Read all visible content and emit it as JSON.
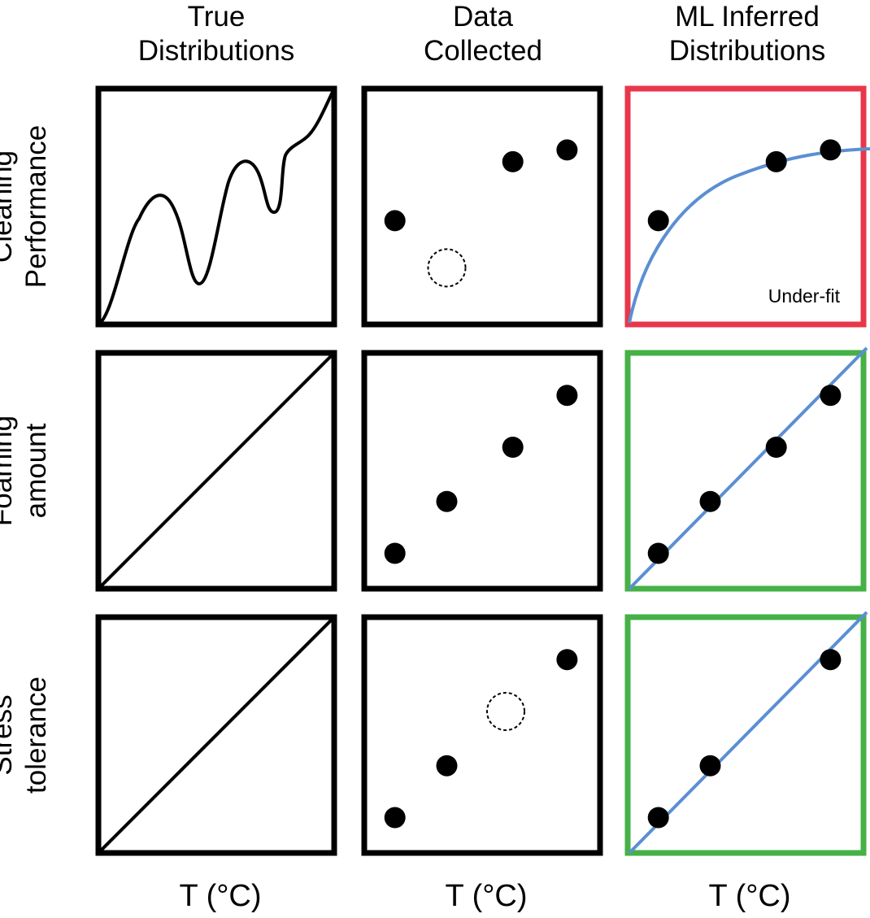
{
  "columns": [
    {
      "id": "true",
      "title_lines": [
        "True",
        "Distributions"
      ],
      "axis_label": "T (°C)"
    },
    {
      "id": "data",
      "title_lines": [
        "Data",
        "Collected"
      ],
      "axis_label": "T (°C)"
    },
    {
      "id": "ml",
      "title_lines": [
        "ML Inferred",
        "Distributions"
      ],
      "axis_label": "T (°C)"
    }
  ],
  "rows": [
    {
      "id": "cleaning",
      "label_lines": [
        "Cleaning",
        "Performance"
      ]
    },
    {
      "id": "foaming",
      "label_lines": [
        "Foaming",
        "amount"
      ]
    },
    {
      "id": "stress",
      "label_lines": [
        "Stress",
        "tolerance"
      ]
    }
  ],
  "fit_annotation": "Under-fit",
  "colors": {
    "frame": "#000000",
    "underfit_frame": "#e8374a",
    "goodfit_frame": "#45b146",
    "fit_curve": "#5b8fd3",
    "point": "#000000"
  },
  "panels": {
    "cleaning": {
      "true_shape": "oscillating",
      "data_points": [
        [
          0.13,
          0.44
        ],
        [
          0.63,
          0.69
        ],
        [
          0.86,
          0.74
        ]
      ],
      "missing_points": [
        [
          0.35,
          0.24
        ]
      ],
      "fit_shape": "saturating",
      "fit_points": [
        [
          0.13,
          0.44
        ],
        [
          0.63,
          0.69
        ],
        [
          0.86,
          0.74
        ]
      ],
      "fit_status": "under-fit"
    },
    "foaming": {
      "true_shape": "linear",
      "data_points": [
        [
          0.13,
          0.15
        ],
        [
          0.35,
          0.37
        ],
        [
          0.63,
          0.6
        ],
        [
          0.86,
          0.82
        ]
      ],
      "missing_points": [],
      "fit_shape": "linear",
      "fit_points": [
        [
          0.13,
          0.15
        ],
        [
          0.35,
          0.37
        ],
        [
          0.63,
          0.6
        ],
        [
          0.86,
          0.82
        ]
      ],
      "fit_status": "good-fit"
    },
    "stress": {
      "true_shape": "linear",
      "data_points": [
        [
          0.13,
          0.15
        ],
        [
          0.35,
          0.37
        ],
        [
          0.86,
          0.82
        ]
      ],
      "missing_points": [
        [
          0.6,
          0.6
        ]
      ],
      "fit_shape": "linear",
      "fit_points": [
        [
          0.13,
          0.15
        ],
        [
          0.35,
          0.37
        ],
        [
          0.86,
          0.82
        ]
      ],
      "fit_status": "good-fit"
    }
  }
}
